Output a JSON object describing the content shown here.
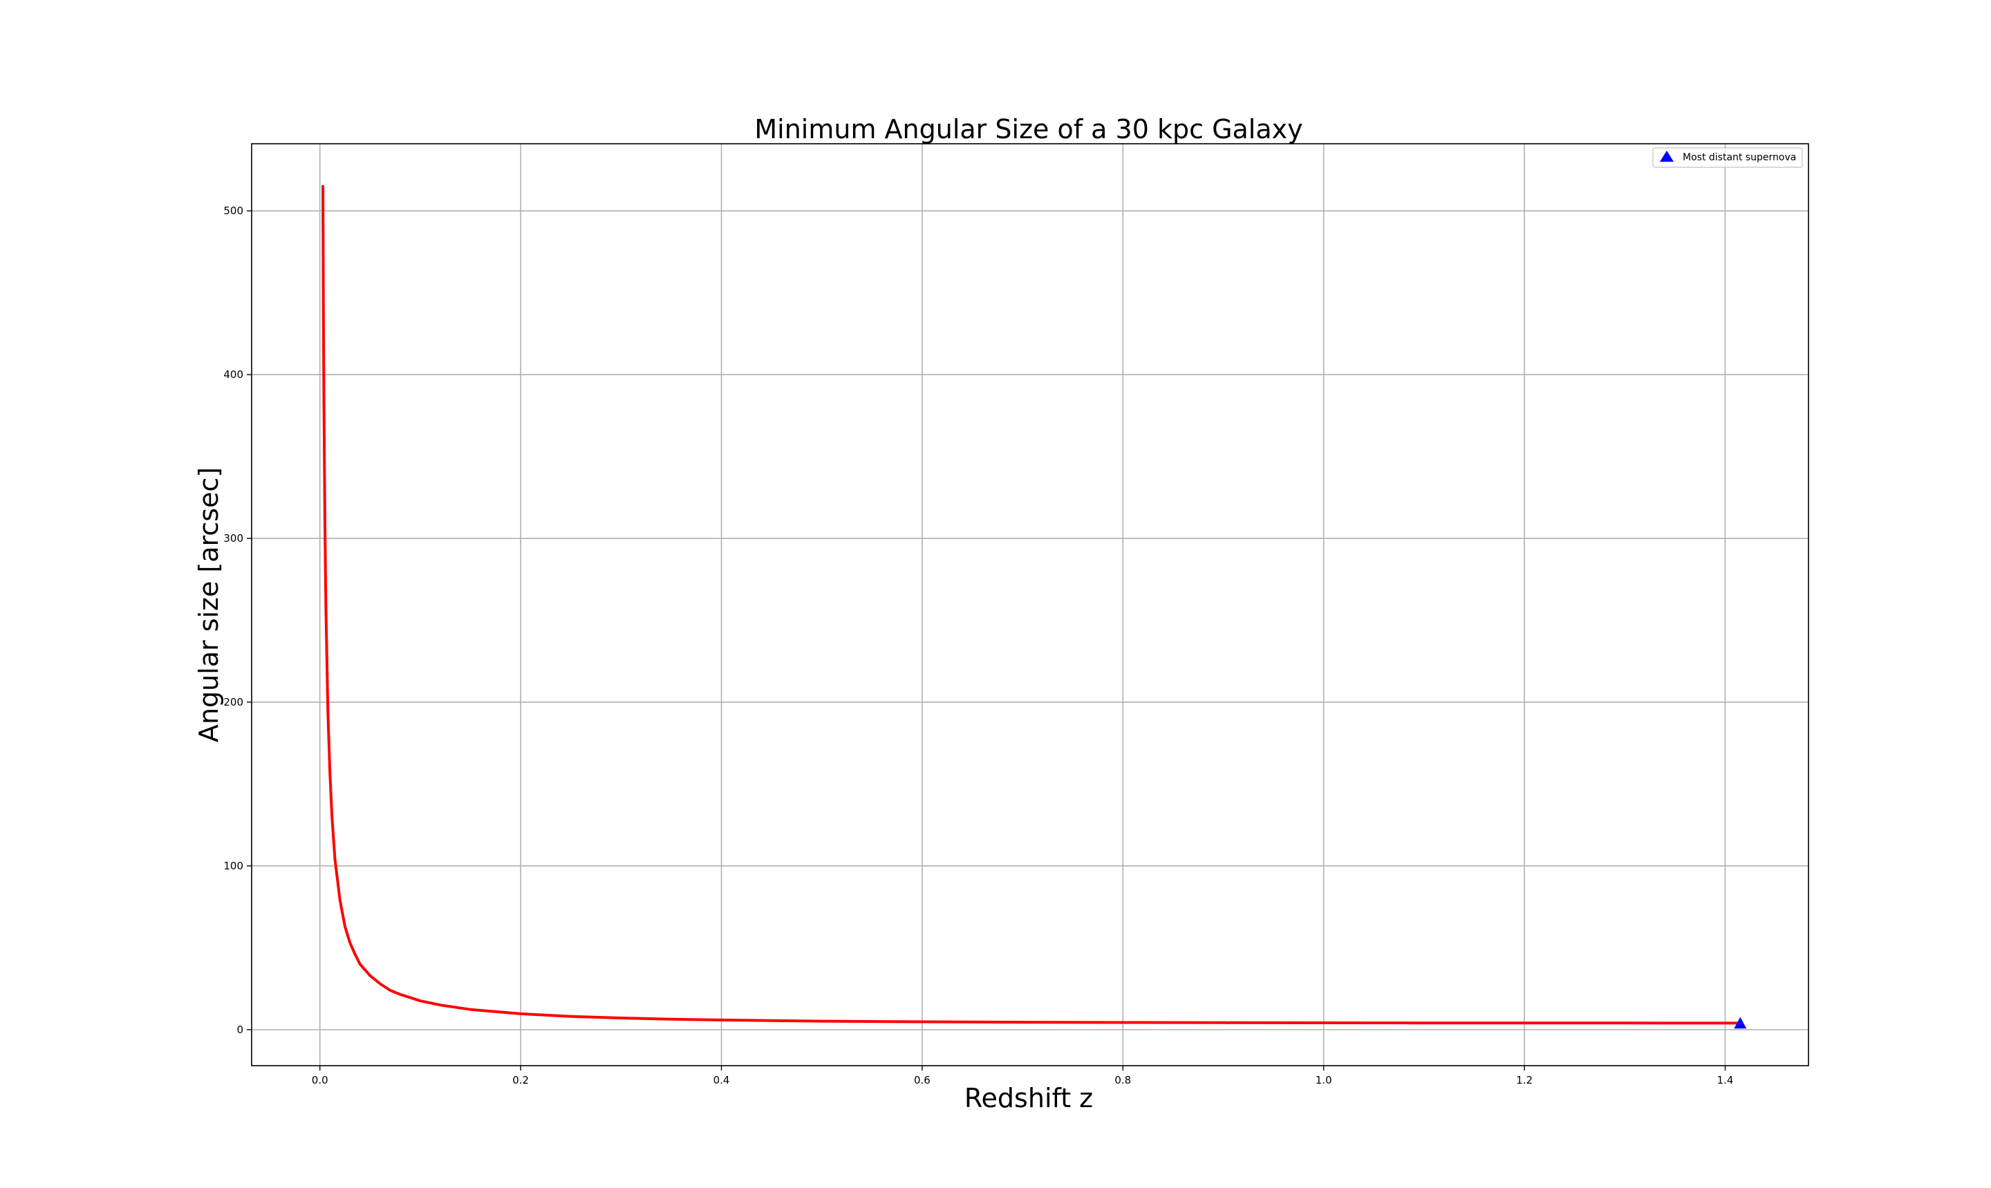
{
  "chart_data": {
    "type": "line",
    "title": "Minimum Angular Size of a 30 kpc Galaxy",
    "xlabel": "Redshift z",
    "ylabel": "Angular size [arcsec]",
    "xlim": [
      -0.068,
      1.483
    ],
    "ylim": [
      -22,
      541
    ],
    "x_ticks": [
      0.0,
      0.2,
      0.4,
      0.6,
      0.8,
      1.0,
      1.2,
      1.4
    ],
    "x_tick_labels": [
      "0.0",
      "0.2",
      "0.4",
      "0.6",
      "0.8",
      "1.0",
      "1.2",
      "1.4"
    ],
    "y_ticks": [
      0,
      100,
      200,
      300,
      400,
      500
    ],
    "y_tick_labels": [
      "0",
      "100",
      "200",
      "300",
      "400",
      "500"
    ],
    "grid": true,
    "legend_position": "top-right",
    "series": [
      {
        "kind": "line",
        "color": "#ff0000",
        "points": [
          [
            0.003,
            515
          ],
          [
            0.0035,
            440
          ],
          [
            0.004,
            386
          ],
          [
            0.005,
            309
          ],
          [
            0.006,
            258
          ],
          [
            0.008,
            194
          ],
          [
            0.01,
            156
          ],
          [
            0.012,
            130
          ],
          [
            0.015,
            104
          ],
          [
            0.02,
            79
          ],
          [
            0.025,
            63
          ],
          [
            0.03,
            53
          ],
          [
            0.035,
            46
          ],
          [
            0.04,
            40
          ],
          [
            0.05,
            33
          ],
          [
            0.06,
            28
          ],
          [
            0.07,
            24
          ],
          [
            0.08,
            21.5
          ],
          [
            0.1,
            17.6
          ],
          [
            0.12,
            15.0
          ],
          [
            0.15,
            12.3
          ],
          [
            0.2,
            9.7
          ],
          [
            0.25,
            8.1
          ],
          [
            0.3,
            7.1
          ],
          [
            0.35,
            6.4
          ],
          [
            0.4,
            5.9
          ],
          [
            0.5,
            5.2
          ],
          [
            0.6,
            4.8
          ],
          [
            0.7,
            4.55
          ],
          [
            0.8,
            4.37
          ],
          [
            0.9,
            4.24
          ],
          [
            1.0,
            4.15
          ],
          [
            1.1,
            4.09
          ],
          [
            1.2,
            4.05
          ],
          [
            1.3,
            4.02
          ],
          [
            1.415,
            4.0
          ]
        ]
      },
      {
        "name": "Most distant supernova",
        "kind": "marker",
        "marker": "triangle",
        "color": "#0000ff",
        "points": [
          [
            1.415,
            3.9
          ]
        ]
      }
    ]
  }
}
